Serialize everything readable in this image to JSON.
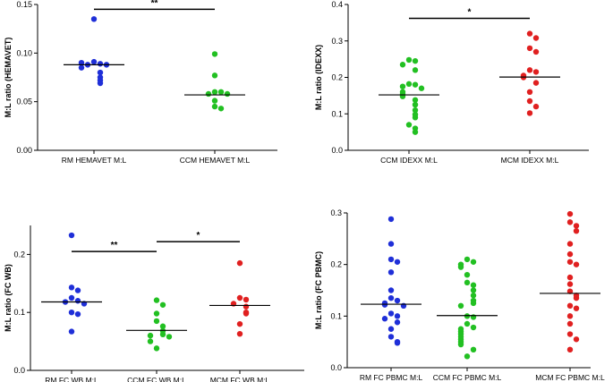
{
  "colors": {
    "RM": "#1f2fd8",
    "CCM": "#22c022",
    "MCM": "#e02020"
  },
  "chart_data": [
    {
      "type": "scatter",
      "ylabel": "M:L ratio  (HEMAVET)",
      "ylim": [
        0,
        0.15
      ],
      "yticks": [
        "0.00",
        "0.05",
        "0.10",
        "0.15"
      ],
      "groups": [
        {
          "name": "RM HEMAVET M:L",
          "color": "RM",
          "mean": 0.088,
          "values": [
            0.135,
            0.091,
            0.089,
            0.088,
            0.088,
            0.09,
            0.085,
            0.08,
            0.075,
            0.072,
            0.069
          ]
        },
        {
          "name": "CCM HEMAVET M:L",
          "color": "CCM",
          "mean": 0.057,
          "values": [
            0.099,
            0.077,
            0.06,
            0.06,
            0.058,
            0.058,
            0.051,
            0.045,
            0.043
          ]
        }
      ],
      "annotations": [
        {
          "text": "**",
          "from": 0,
          "to": 1,
          "y": 0.145
        }
      ]
    },
    {
      "type": "scatter",
      "ylabel": "M:L ratio  (IDEXX)",
      "ylim": [
        0,
        0.4
      ],
      "yticks": [
        "0.0",
        "0.1",
        "0.2",
        "0.3",
        "0.4"
      ],
      "groups": [
        {
          "name": "CCM IDEXX M:L",
          "color": "CCM",
          "mean": 0.152,
          "values": [
            0.248,
            0.245,
            0.235,
            0.22,
            0.182,
            0.18,
            0.175,
            0.17,
            0.16,
            0.155,
            0.148,
            0.138,
            0.125,
            0.11,
            0.098,
            0.09,
            0.07,
            0.06,
            0.05
          ]
        },
        {
          "name": "MCM IDEXX M:L",
          "color": "MCM",
          "mean": 0.201,
          "values": [
            0.32,
            0.308,
            0.28,
            0.27,
            0.22,
            0.215,
            0.205,
            0.2,
            0.185,
            0.16,
            0.135,
            0.12,
            0.102
          ]
        }
      ],
      "annotations": [
        {
          "text": "*",
          "from": 0,
          "to": 1,
          "y": 0.362
        }
      ]
    },
    {
      "type": "scatter",
      "ylabel": "M:L ratio  (FC WB)",
      "ylim": [
        0,
        0.25
      ],
      "yticks": [
        "0.0",
        "0.1",
        "0.2"
      ],
      "groups": [
        {
          "name": "RM FC WB M:L",
          "color": "RM",
          "mean": 0.118,
          "values": [
            0.233,
            0.143,
            0.138,
            0.125,
            0.12,
            0.118,
            0.115,
            0.1,
            0.097,
            0.067
          ]
        },
        {
          "name": "CCM FC WB M:L",
          "color": "CCM",
          "mean": 0.069,
          "values": [
            0.121,
            0.113,
            0.098,
            0.085,
            0.076,
            0.068,
            0.062,
            0.06,
            0.058,
            0.05,
            0.038
          ]
        },
        {
          "name": "MCM FC WB M:L",
          "color": "MCM",
          "mean": 0.112,
          "values": [
            0.185,
            0.125,
            0.122,
            0.115,
            0.11,
            0.1,
            0.098,
            0.08,
            0.063
          ]
        }
      ],
      "annotations": [
        {
          "text": "**",
          "from": 0,
          "to": 1,
          "y": 0.205
        },
        {
          "text": "*",
          "from": 1,
          "to": 2,
          "y": 0.222
        }
      ]
    },
    {
      "type": "scatter",
      "ylabel": "M:L ratio  (FC PBMC)",
      "ylim": [
        0,
        0.3
      ],
      "yticks": [
        "0.0",
        "0.1",
        "0.2",
        "0.3"
      ],
      "groups": [
        {
          "name": "RM FC PBMC M:L",
          "color": "RM",
          "mean": 0.123,
          "values": [
            0.288,
            0.24,
            0.21,
            0.205,
            0.185,
            0.15,
            0.135,
            0.13,
            0.125,
            0.122,
            0.12,
            0.105,
            0.1,
            0.095,
            0.088,
            0.075,
            0.06,
            0.05,
            0.048
          ]
        },
        {
          "name": "CCM FC PBMC M:L",
          "color": "CCM",
          "mean": 0.101,
          "values": [
            0.21,
            0.205,
            0.2,
            0.195,
            0.18,
            0.165,
            0.16,
            0.15,
            0.14,
            0.13,
            0.125,
            0.12,
            0.1,
            0.098,
            0.085,
            0.078,
            0.075,
            0.07,
            0.065,
            0.06,
            0.055,
            0.05,
            0.045,
            0.035,
            0.022
          ]
        },
        {
          "name": "MCM FC PBMC M:L",
          "color": "MCM",
          "mean": 0.144,
          "values": [
            0.298,
            0.282,
            0.275,
            0.265,
            0.24,
            0.22,
            0.205,
            0.2,
            0.175,
            0.162,
            0.148,
            0.14,
            0.135,
            0.12,
            0.115,
            0.1,
            0.085,
            0.065,
            0.055,
            0.035
          ]
        }
      ],
      "annotations": []
    }
  ]
}
